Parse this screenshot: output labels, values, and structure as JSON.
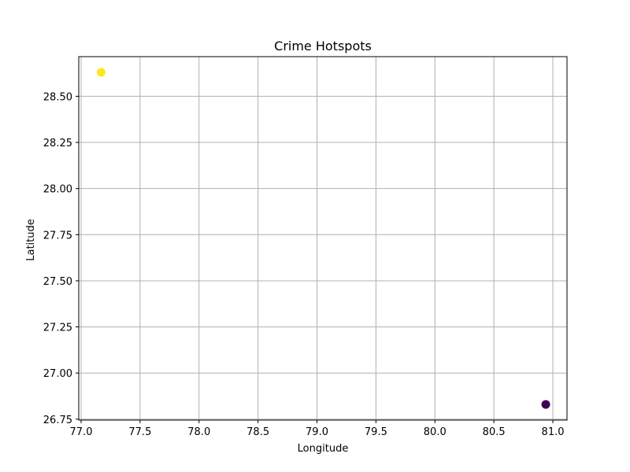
{
  "chart_data": {
    "type": "scatter",
    "title": "Crime Hotspots",
    "xlabel": "Longitude",
    "ylabel": "Latitude",
    "xlim": [
      76.98,
      81.12
    ],
    "ylim": [
      26.745,
      28.715
    ],
    "xticks": [
      77.0,
      77.5,
      78.0,
      78.5,
      79.0,
      79.5,
      80.0,
      80.5,
      81.0
    ],
    "xtick_labels": [
      "77.0",
      "77.5",
      "78.0",
      "78.5",
      "79.0",
      "79.5",
      "80.0",
      "80.5",
      "81.0"
    ],
    "yticks": [
      26.75,
      27.0,
      27.25,
      27.5,
      27.75,
      28.0,
      28.25,
      28.5
    ],
    "ytick_labels": [
      "26.75",
      "27.00",
      "27.25",
      "27.50",
      "27.75",
      "28.00",
      "28.25",
      "28.50"
    ],
    "grid": true,
    "points": [
      {
        "x": 77.17,
        "y": 28.63,
        "color": "#fde725"
      },
      {
        "x": 80.94,
        "y": 26.83,
        "color": "#440154"
      }
    ]
  }
}
